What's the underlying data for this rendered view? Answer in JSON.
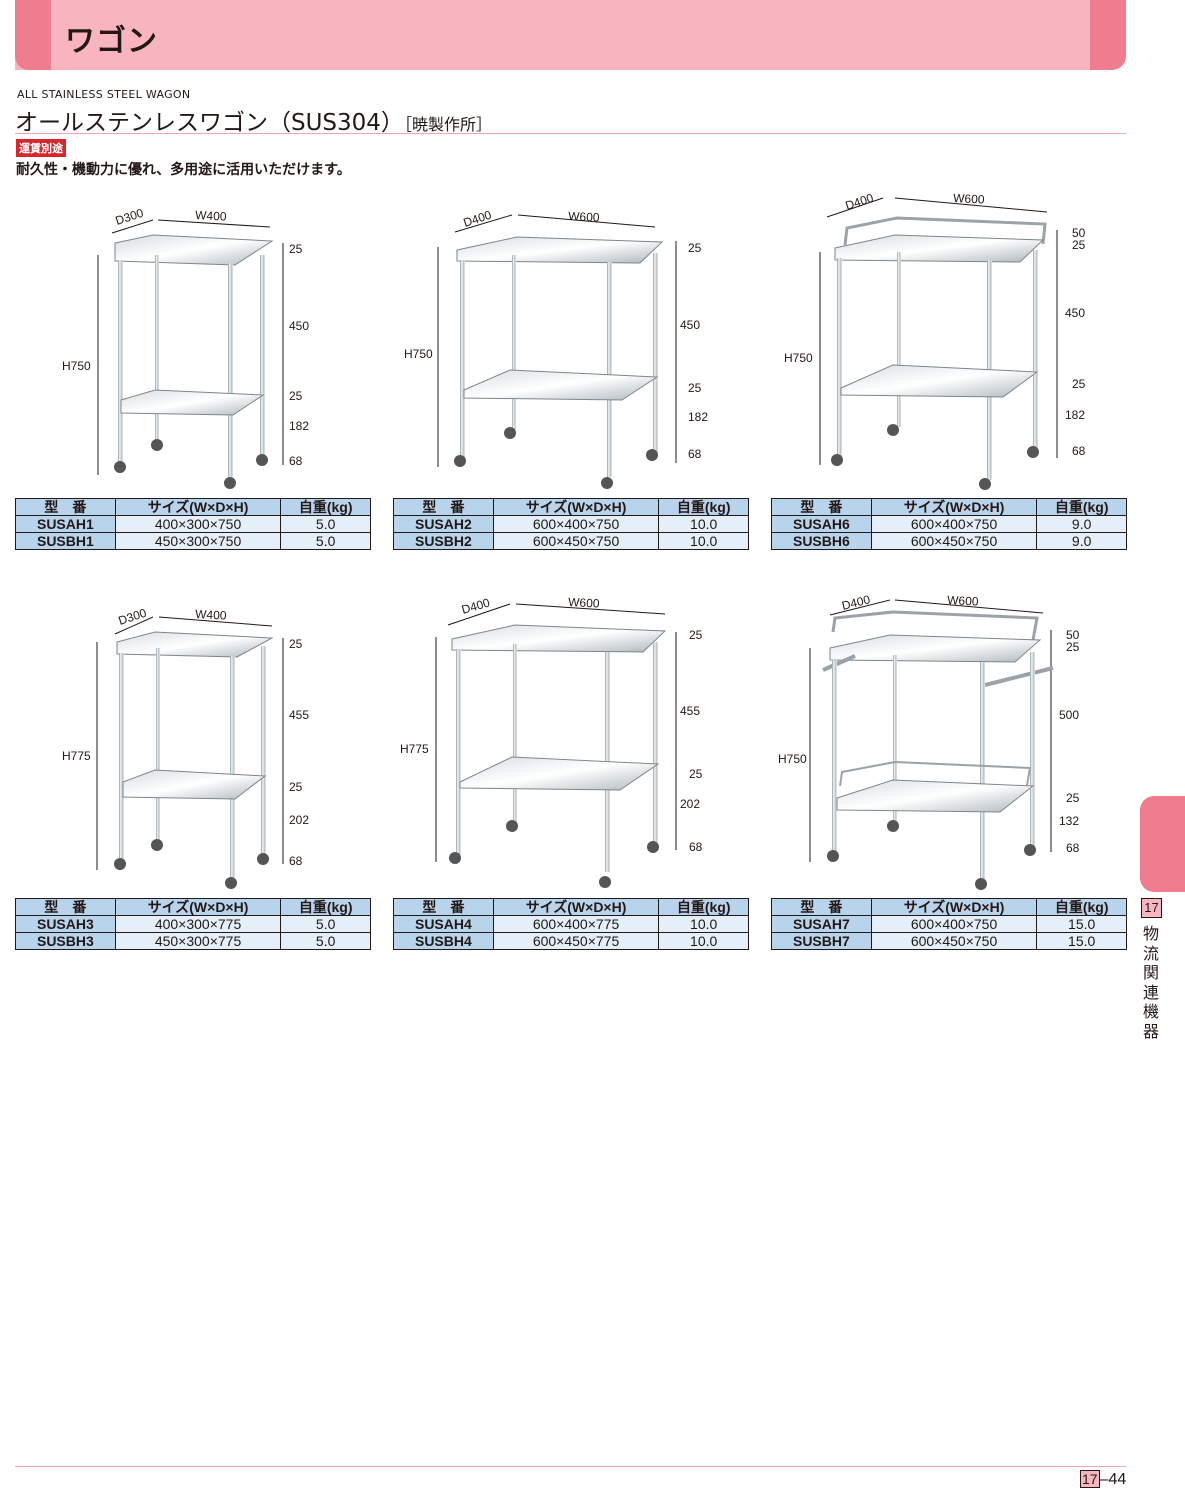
{
  "header": {
    "title": "ワゴン"
  },
  "product": {
    "subtitle_en": "ALL STAINLESS STEEL WAGON",
    "title": "オールステンレスワゴン（SUS304）",
    "maker": "［暁製作所］",
    "tag": "運賃別途",
    "description": "耐久性・機動力に優れ、多用途に活用いただけます。"
  },
  "table_headers": {
    "model": "型　番",
    "size": "サイズ(W×D×H)",
    "weight": "自重(kg)"
  },
  "figures": [
    {
      "d": "D300",
      "w": "W400",
      "h": "H750",
      "dims": [
        "25",
        "450",
        "25",
        "182",
        "68"
      ]
    },
    {
      "d": "D400",
      "w": "W600",
      "h": "H750",
      "dims": [
        "25",
        "450",
        "25",
        "182",
        "68"
      ]
    },
    {
      "d": "D400",
      "w": "W600",
      "h": "H750",
      "dims": [
        "50",
        "25",
        "450",
        "25",
        "182",
        "68"
      ]
    },
    {
      "d": "D300",
      "w": "W400",
      "h": "H775",
      "dims": [
        "25",
        "455",
        "25",
        "202",
        "68"
      ]
    },
    {
      "d": "D400",
      "w": "W600",
      "h": "H775",
      "dims": [
        "25",
        "455",
        "25",
        "202",
        "68"
      ]
    },
    {
      "d": "D400",
      "w": "W600",
      "h": "H750",
      "dims": [
        "50",
        "25",
        "500",
        "25",
        "132",
        "68"
      ]
    }
  ],
  "tables": [
    {
      "rows": [
        {
          "model": "SUSAH1",
          "size": "400×300×750",
          "weight": "5.0"
        },
        {
          "model": "SUSBH1",
          "size": "450×300×750",
          "weight": "5.0"
        }
      ]
    },
    {
      "rows": [
        {
          "model": "SUSAH2",
          "size": "600×400×750",
          "weight": "10.0"
        },
        {
          "model": "SUSBH2",
          "size": "600×450×750",
          "weight": "10.0"
        }
      ]
    },
    {
      "rows": [
        {
          "model": "SUSAH6",
          "size": "600×400×750",
          "weight": "9.0"
        },
        {
          "model": "SUSBH6",
          "size": "600×450×750",
          "weight": "9.0"
        }
      ]
    },
    {
      "rows": [
        {
          "model": "SUSAH3",
          "size": "400×300×775",
          "weight": "5.0"
        },
        {
          "model": "SUSBH3",
          "size": "450×300×775",
          "weight": "5.0"
        }
      ]
    },
    {
      "rows": [
        {
          "model": "SUSAH4",
          "size": "600×400×775",
          "weight": "10.0"
        },
        {
          "model": "SUSBH4",
          "size": "600×450×775",
          "weight": "10.0"
        }
      ]
    },
    {
      "rows": [
        {
          "model": "SUSAH7",
          "size": "600×400×750",
          "weight": "15.0"
        },
        {
          "model": "SUSBH7",
          "size": "600×450×750",
          "weight": "15.0"
        }
      ]
    }
  ],
  "side": {
    "chapter": "17",
    "label": "物流関連機器"
  },
  "footer": {
    "chapter": "17",
    "page": "–44"
  },
  "colors": {
    "banner": "#f9b5bf",
    "banner_accent": "#ef7d8e",
    "table_header": "#b8d4ec",
    "table_cell": "#e4effa",
    "tag": "#d7262c"
  }
}
